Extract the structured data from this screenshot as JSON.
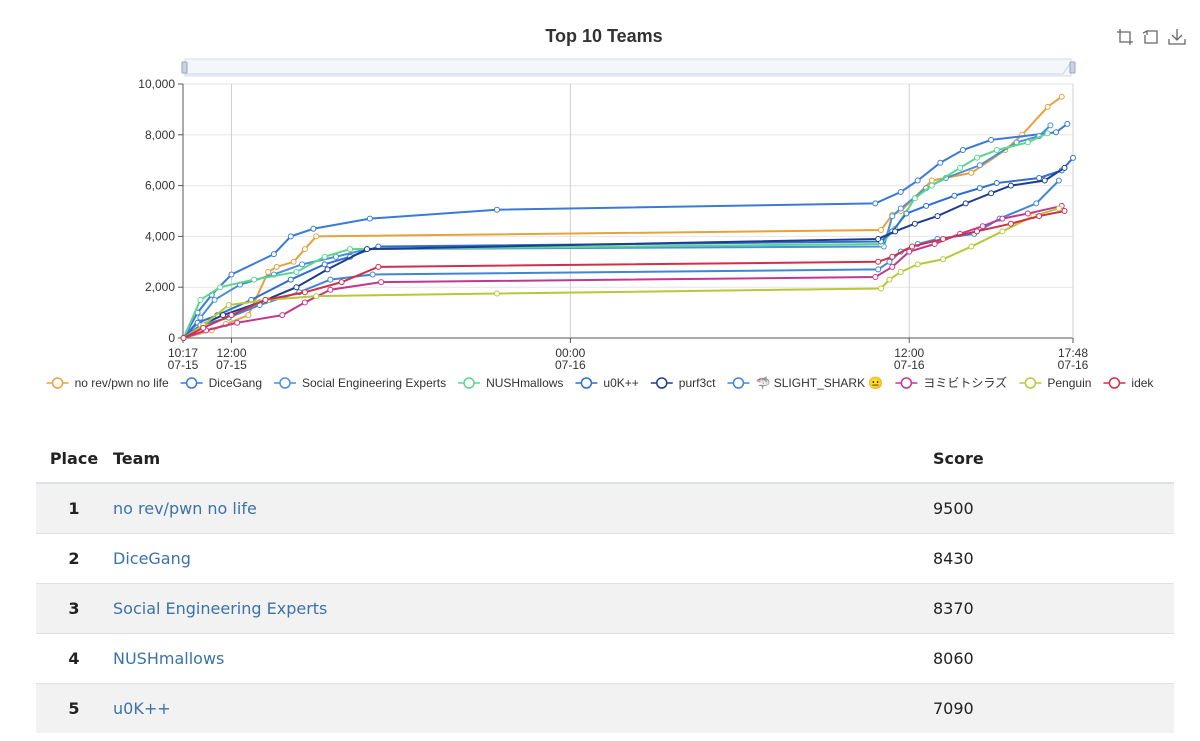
{
  "chart": {
    "title": "Top 10 Teams",
    "toolbox": [
      {
        "name": "zoom-icon"
      },
      {
        "name": "zoom-reset-icon"
      },
      {
        "name": "download-icon"
      }
    ]
  },
  "chart_data": {
    "type": "line",
    "title": "Top 10 Teams",
    "x_axis_kind": "time",
    "y_axis_kind": "value",
    "xlim": [
      "07-15 10:17",
      "07-16 17:48"
    ],
    "ylim": [
      0,
      10000
    ],
    "y_ticks": [
      "0",
      "2,000",
      "4,000",
      "6,000",
      "8,000",
      "10,000"
    ],
    "x_ticks": [
      {
        "time": "10:17",
        "date": "07-15",
        "hour": 10.283
      },
      {
        "time": "12:00",
        "date": "07-15",
        "hour": 12
      },
      {
        "time": "00:00",
        "date": "07-16",
        "hour": 24
      },
      {
        "time": "12:00",
        "date": "07-16",
        "hour": 36
      },
      {
        "time": "17:48",
        "date": "07-16",
        "hour": 41.8
      }
    ],
    "grid": true,
    "legend_position": "bottom",
    "datazoom_slider": true,
    "series": [
      {
        "name": "no rev/pwn no life",
        "color": "#e8a23c",
        "points": [
          [
            10.3,
            0
          ],
          [
            11.3,
            300
          ],
          [
            11.8,
            550
          ],
          [
            12.6,
            900
          ],
          [
            13.3,
            2600
          ],
          [
            13.6,
            2800
          ],
          [
            14.2,
            3000
          ],
          [
            14.6,
            3500
          ],
          [
            15.0,
            4000
          ],
          [
            35.0,
            4250
          ],
          [
            35.4,
            4850
          ],
          [
            35.7,
            5000
          ],
          [
            36.8,
            6200
          ],
          [
            38.2,
            6500
          ],
          [
            39.4,
            7400
          ],
          [
            40.0,
            8000
          ],
          [
            40.9,
            9100
          ],
          [
            41.4,
            9500
          ]
        ]
      },
      {
        "name": "DiceGang",
        "color": "#3a7bd5",
        "points": [
          [
            10.3,
            0
          ],
          [
            10.8,
            1000
          ],
          [
            11.3,
            1700
          ],
          [
            12.0,
            2500
          ],
          [
            13.5,
            3300
          ],
          [
            14.1,
            4000
          ],
          [
            14.9,
            4300
          ],
          [
            16.9,
            4700
          ],
          [
            21.4,
            5050
          ],
          [
            34.8,
            5300
          ],
          [
            35.7,
            5750
          ],
          [
            36.3,
            6200
          ],
          [
            37.1,
            6900
          ],
          [
            37.9,
            7400
          ],
          [
            38.9,
            7800
          ],
          [
            41.2,
            8100
          ],
          [
            41.6,
            8430
          ]
        ]
      },
      {
        "name": "Social Engineering Experts",
        "color": "#4a90d9",
        "points": [
          [
            10.3,
            0
          ],
          [
            10.9,
            800
          ],
          [
            11.4,
            1500
          ],
          [
            12.3,
            2100
          ],
          [
            13.5,
            2500
          ],
          [
            14.5,
            2900
          ],
          [
            15.7,
            3200
          ],
          [
            16.8,
            3500
          ],
          [
            35.1,
            3600
          ],
          [
            35.4,
            4800
          ],
          [
            35.7,
            5100
          ],
          [
            36.6,
            5900
          ],
          [
            37.3,
            6300
          ],
          [
            38.5,
            6800
          ],
          [
            39.8,
            7700
          ],
          [
            40.6,
            7950
          ],
          [
            41.0,
            8370
          ]
        ]
      },
      {
        "name": "NUSHmallows",
        "color": "#5cd68a",
        "points": [
          [
            10.3,
            0
          ],
          [
            10.9,
            1500
          ],
          [
            11.6,
            2000
          ],
          [
            12.8,
            2300
          ],
          [
            14.3,
            2600
          ],
          [
            15.3,
            3200
          ],
          [
            16.2,
            3500
          ],
          [
            35.0,
            3700
          ],
          [
            35.5,
            4300
          ],
          [
            36.2,
            5500
          ],
          [
            36.8,
            6000
          ],
          [
            37.8,
            6700
          ],
          [
            38.4,
            7100
          ],
          [
            39.1,
            7400
          ],
          [
            40.2,
            7700
          ],
          [
            40.9,
            8060
          ]
        ]
      },
      {
        "name": "u0K++",
        "color": "#2f6fd1",
        "points": [
          [
            10.3,
            0
          ],
          [
            10.8,
            600
          ],
          [
            11.5,
            900
          ],
          [
            12.7,
            1500
          ],
          [
            14.1,
            2300
          ],
          [
            15.3,
            2900
          ],
          [
            16.2,
            3200
          ],
          [
            17.2,
            3600
          ],
          [
            35.0,
            3800
          ],
          [
            35.4,
            4200
          ],
          [
            35.9,
            4900
          ],
          [
            36.6,
            5200
          ],
          [
            37.6,
            5600
          ],
          [
            38.5,
            5900
          ],
          [
            39.1,
            6100
          ],
          [
            40.6,
            6300
          ],
          [
            41.4,
            6600
          ],
          [
            41.8,
            7090
          ]
        ]
      },
      {
        "name": "purf3ct",
        "color": "#1e3d8f",
        "points": [
          [
            10.3,
            0
          ],
          [
            10.9,
            500
          ],
          [
            11.7,
            900
          ],
          [
            13.0,
            1400
          ],
          [
            14.3,
            2000
          ],
          [
            15.4,
            2700
          ],
          [
            16.8,
            3500
          ],
          [
            34.9,
            3900
          ],
          [
            35.5,
            4200
          ],
          [
            36.2,
            4500
          ],
          [
            37.0,
            4800
          ],
          [
            38.0,
            5300
          ],
          [
            38.9,
            5700
          ],
          [
            39.6,
            6000
          ],
          [
            40.8,
            6200
          ],
          [
            41.5,
            6700
          ]
        ]
      },
      {
        "name": "🦈 SLIGHT_SHARK 😐",
        "color": "#3f86d6",
        "points": [
          [
            10.3,
            0
          ],
          [
            10.9,
            500
          ],
          [
            11.9,
            800
          ],
          [
            13.0,
            1300
          ],
          [
            14.4,
            1800
          ],
          [
            15.5,
            2300
          ],
          [
            17.0,
            2500
          ],
          [
            34.9,
            2700
          ],
          [
            35.3,
            3000
          ],
          [
            35.7,
            3400
          ],
          [
            36.3,
            3700
          ],
          [
            37.0,
            3900
          ],
          [
            38.3,
            4100
          ],
          [
            39.2,
            4700
          ],
          [
            40.5,
            5300
          ],
          [
            41.3,
            6200
          ]
        ]
      },
      {
        "name": "ヨミビトシラズ",
        "color": "#c2378f",
        "points": [
          [
            10.3,
            0
          ],
          [
            11.1,
            300
          ],
          [
            12.2,
            600
          ],
          [
            13.8,
            900
          ],
          [
            14.6,
            1400
          ],
          [
            15.5,
            1900
          ],
          [
            17.3,
            2200
          ],
          [
            34.8,
            2400
          ],
          [
            35.4,
            2800
          ],
          [
            36.0,
            3400
          ],
          [
            36.9,
            3700
          ],
          [
            37.8,
            4100
          ],
          [
            38.6,
            4400
          ],
          [
            39.3,
            4700
          ],
          [
            40.2,
            4900
          ],
          [
            41.4,
            5200
          ]
        ]
      },
      {
        "name": "Penguin",
        "color": "#b7c93a",
        "points": [
          [
            10.3,
            0
          ],
          [
            11.0,
            500
          ],
          [
            11.9,
            1300
          ],
          [
            13.3,
            1500
          ],
          [
            15.0,
            1650
          ],
          [
            21.4,
            1750
          ],
          [
            35.0,
            1950
          ],
          [
            35.3,
            2300
          ],
          [
            35.7,
            2600
          ],
          [
            36.3,
            2900
          ],
          [
            37.2,
            3100
          ],
          [
            38.2,
            3600
          ],
          [
            39.3,
            4200
          ],
          [
            40.4,
            4800
          ],
          [
            41.3,
            5100
          ]
        ]
      },
      {
        "name": "idek",
        "color": "#d12f4a",
        "points": [
          [
            10.3,
            0
          ],
          [
            11.0,
            400
          ],
          [
            12.0,
            900
          ],
          [
            13.2,
            1500
          ],
          [
            14.6,
            1800
          ],
          [
            15.9,
            2200
          ],
          [
            17.2,
            2800
          ],
          [
            34.9,
            3000
          ],
          [
            35.4,
            3200
          ],
          [
            36.1,
            3600
          ],
          [
            37.2,
            3900
          ],
          [
            38.4,
            4200
          ],
          [
            39.6,
            4500
          ],
          [
            40.6,
            4800
          ],
          [
            41.5,
            5000
          ]
        ]
      }
    ]
  },
  "table": {
    "headers": {
      "place": "Place",
      "team": "Team",
      "score": "Score"
    },
    "rows": [
      {
        "place": "1",
        "team": "no rev/pwn no life",
        "score": "9500"
      },
      {
        "place": "2",
        "team": "DiceGang",
        "score": "8430"
      },
      {
        "place": "3",
        "team": "Social Engineering Experts",
        "score": "8370"
      },
      {
        "place": "4",
        "team": "NUSHmallows",
        "score": "8060"
      },
      {
        "place": "5",
        "team": "u0K++",
        "score": "7090"
      }
    ]
  }
}
